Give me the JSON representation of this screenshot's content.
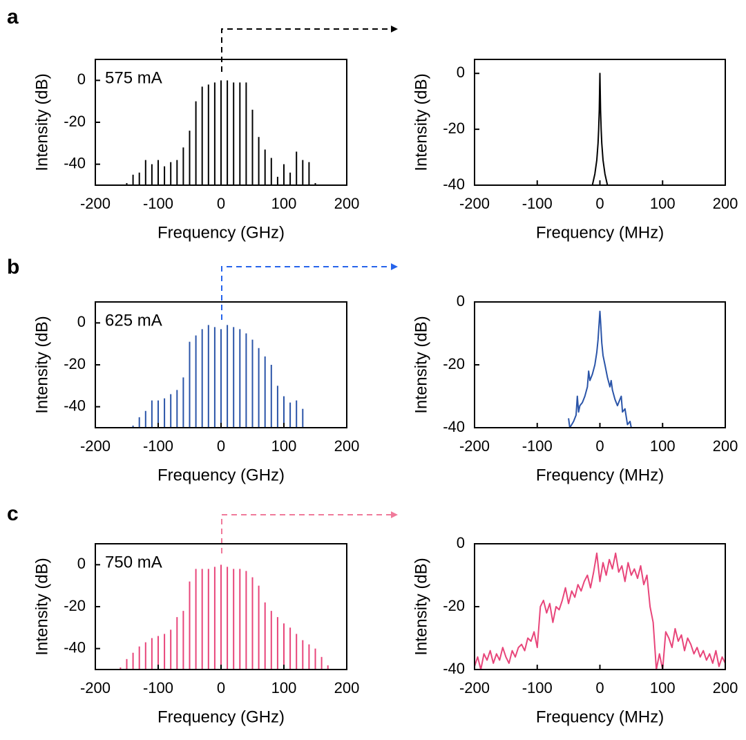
{
  "chart_data": [
    {
      "type": "bar",
      "panel": "a",
      "annotation": "575 mA",
      "xlabel": "Frequency (GHz)",
      "ylabel": "Intensity (dB)",
      "color": "#000000",
      "x": [
        -150,
        -140,
        -130,
        -120,
        -110,
        -100,
        -90,
        -80,
        -70,
        -60,
        -50,
        -40,
        -30,
        -20,
        -10,
        0,
        10,
        20,
        30,
        40,
        50,
        60,
        70,
        80,
        90,
        100,
        110,
        120,
        130,
        140,
        150
      ],
      "values": [
        -49,
        -45,
        -44,
        -38,
        -40,
        -38,
        -41,
        -39,
        -38,
        -32,
        -24,
        -10,
        -3,
        -2,
        -1,
        0,
        0,
        -1,
        -1,
        -1,
        -14,
        -27,
        -33,
        -37,
        -46,
        -40,
        -44,
        -34,
        -38,
        -39,
        -49
      ],
      "xlim": [
        -200,
        200
      ],
      "ylim": [
        -50,
        10
      ],
      "xticks": [
        -200,
        -100,
        0,
        100,
        200
      ],
      "yticks": [
        -40,
        -20,
        0
      ]
    },
    {
      "type": "line",
      "xlabel": "Frequency (MHz)",
      "ylabel": "Intensity (dB)",
      "color": "#000000",
      "x": [
        -12,
        -8,
        -5,
        -3,
        -2,
        -1,
        -0.5,
        0,
        0.5,
        1,
        2,
        3,
        5,
        8,
        12
      ],
      "values": [
        -40,
        -36,
        -31,
        -25,
        -20,
        -13,
        -7,
        0,
        -7,
        -13,
        -20,
        -25,
        -31,
        -36,
        -40
      ],
      "xlim": [
        -200,
        200
      ],
      "ylim": [
        -40,
        5
      ],
      "xticks": [
        -200,
        -100,
        0,
        100,
        200
      ],
      "yticks": [
        -40,
        -20,
        0
      ]
    },
    {
      "type": "bar",
      "panel": "b",
      "annotation": "625 mA",
      "xlabel": "Frequency (GHz)",
      "ylabel": "Intensity (dB)",
      "color": "#2a54a8",
      "x": [
        -140,
        -130,
        -120,
        -110,
        -100,
        -90,
        -80,
        -70,
        -60,
        -50,
        -40,
        -30,
        -20,
        -10,
        0,
        10,
        20,
        30,
        40,
        50,
        60,
        70,
        80,
        90,
        100,
        110,
        120,
        130
      ],
      "values": [
        -49,
        -45,
        -42,
        -37,
        -37,
        -36,
        -34,
        -32,
        -26,
        -9,
        -6,
        -3,
        -1,
        -2,
        -3,
        -1,
        -2,
        -3,
        -5,
        -8,
        -12,
        -16,
        -20,
        -30,
        -35,
        -38,
        -37,
        -41
      ],
      "xlim": [
        -200,
        200
      ],
      "ylim": [
        -50,
        10
      ],
      "xticks": [
        -200,
        -100,
        0,
        100,
        200
      ],
      "yticks": [
        -40,
        -20,
        0
      ]
    },
    {
      "type": "line",
      "xlabel": "Frequency (MHz)",
      "ylabel": "Intensity (dB)",
      "color": "#2a54a8",
      "x": [
        -50,
        -48,
        -45,
        -42,
        -38,
        -36,
        -34,
        -32,
        -28,
        -24,
        -20,
        -18,
        -16,
        -12,
        -8,
        -5,
        -3,
        -1,
        0,
        1,
        3,
        5,
        8,
        12,
        16,
        18,
        20,
        24,
        28,
        32,
        34,
        36,
        40,
        44,
        48,
        50
      ],
      "values": [
        -37,
        -40,
        -39,
        -38,
        -36,
        -30,
        -35,
        -33,
        -32,
        -30,
        -27,
        -22,
        -25,
        -23,
        -20,
        -16,
        -12,
        -6,
        -3,
        -6,
        -13,
        -17,
        -20,
        -24,
        -27,
        -25,
        -28,
        -31,
        -33,
        -31,
        -30,
        -35,
        -34,
        -39,
        -38,
        -40
      ],
      "xlim": [
        -200,
        200
      ],
      "ylim": [
        -40,
        0
      ],
      "xticks": [
        -200,
        -100,
        0,
        100,
        200
      ],
      "yticks": [
        -40,
        -20,
        0
      ]
    },
    {
      "type": "bar",
      "panel": "c",
      "annotation": "750 mA",
      "xlabel": "Frequency (GHz)",
      "ylabel": "Intensity (dB)",
      "color": "#e8457a",
      "x": [
        -160,
        -150,
        -140,
        -130,
        -120,
        -110,
        -100,
        -90,
        -80,
        -70,
        -60,
        -50,
        -40,
        -30,
        -20,
        -10,
        0,
        10,
        20,
        30,
        40,
        50,
        60,
        70,
        80,
        90,
        100,
        110,
        120,
        130,
        140,
        150,
        160,
        170
      ],
      "values": [
        -49,
        -45,
        -42,
        -39,
        -37,
        -35,
        -34,
        -33,
        -31,
        -25,
        -22,
        -8,
        -2,
        -2,
        -2,
        -1,
        0,
        -1,
        -2,
        -2,
        -3,
        -6,
        -10,
        -18,
        -22,
        -25,
        -28,
        -30,
        -33,
        -36,
        -38,
        -40,
        -44,
        -48
      ],
      "xlim": [
        -200,
        200
      ],
      "ylim": [
        -50,
        10
      ],
      "xticks": [
        -200,
        -100,
        0,
        100,
        200
      ],
      "yticks": [
        -40,
        -20,
        0
      ]
    },
    {
      "type": "line",
      "xlabel": "Frequency (MHz)",
      "ylabel": "Intensity (dB)",
      "color": "#e8457a",
      "x": [
        -200,
        -195,
        -190,
        -185,
        -180,
        -175,
        -170,
        -165,
        -160,
        -155,
        -150,
        -145,
        -140,
        -135,
        -130,
        -125,
        -120,
        -115,
        -110,
        -105,
        -100,
        -95,
        -90,
        -85,
        -80,
        -75,
        -70,
        -65,
        -60,
        -55,
        -50,
        -45,
        -40,
        -35,
        -30,
        -25,
        -20,
        -15,
        -10,
        -5,
        0,
        5,
        10,
        15,
        20,
        25,
        30,
        35,
        40,
        45,
        50,
        55,
        60,
        65,
        70,
        75,
        80,
        85,
        90,
        95,
        100,
        105,
        110,
        115,
        120,
        125,
        130,
        135,
        140,
        145,
        150,
        155,
        160,
        165,
        170,
        175,
        180,
        185,
        190,
        195,
        200
      ],
      "values": [
        -39,
        -36,
        -40,
        -35,
        -37,
        -34,
        -38,
        -35,
        -37,
        -33,
        -36,
        -38,
        -34,
        -36,
        -33,
        -32,
        -34,
        -30,
        -31,
        -28,
        -33,
        -20,
        -18,
        -22,
        -19,
        -25,
        -20,
        -21,
        -18,
        -14,
        -19,
        -15,
        -17,
        -13,
        -15,
        -12,
        -10,
        -14,
        -9,
        -3,
        -12,
        -6,
        -10,
        -5,
        -8,
        -3,
        -9,
        -7,
        -12,
        -6,
        -10,
        -8,
        -11,
        -7,
        -13,
        -10,
        -20,
        -25,
        -40,
        -35,
        -40,
        -28,
        -30,
        -33,
        -27,
        -31,
        -29,
        -34,
        -30,
        -32,
        -35,
        -33,
        -36,
        -34,
        -37,
        -35,
        -38,
        -34,
        -39,
        -36,
        -38
      ],
      "xlim": [
        -200,
        200
      ],
      "ylim": [
        -40,
        0
      ],
      "xticks": [
        -200,
        -100,
        0,
        100,
        200
      ],
      "yticks": [
        -40,
        -20,
        0
      ]
    }
  ]
}
